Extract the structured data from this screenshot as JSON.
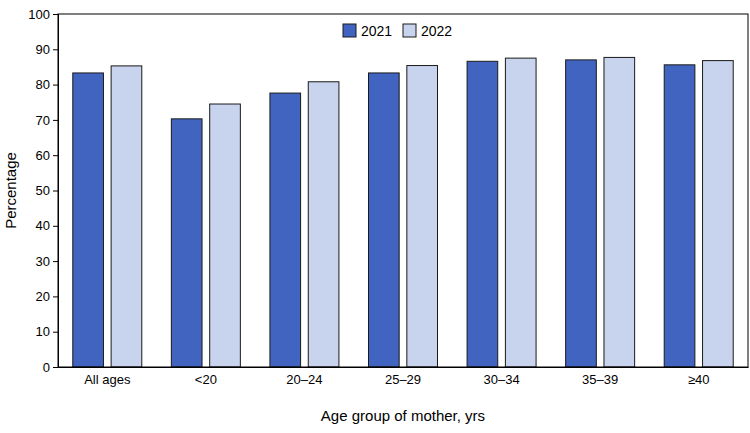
{
  "chart_data": {
    "type": "bar",
    "categories": [
      "All ages",
      "<20",
      "20–24",
      "25–29",
      "30–34",
      "35–39",
      "≥40"
    ],
    "series": [
      {
        "name": "2021",
        "color": "#4064bf",
        "values": [
          83.3,
          70.3,
          77.6,
          83.3,
          86.6,
          87.0,
          85.6
        ]
      },
      {
        "name": "2022",
        "color": "#c8d3ee",
        "values": [
          85.3,
          74.5,
          80.8,
          85.4,
          87.5,
          87.7,
          86.8
        ]
      }
    ],
    "x_label": "Age group of mother, yrs",
    "y_label": "Percentage",
    "ylim": [
      0,
      100
    ],
    "yticks": [
      0,
      10,
      20,
      30,
      40,
      50,
      60,
      70,
      80,
      90,
      100
    ],
    "grid": false,
    "legend": "top"
  }
}
